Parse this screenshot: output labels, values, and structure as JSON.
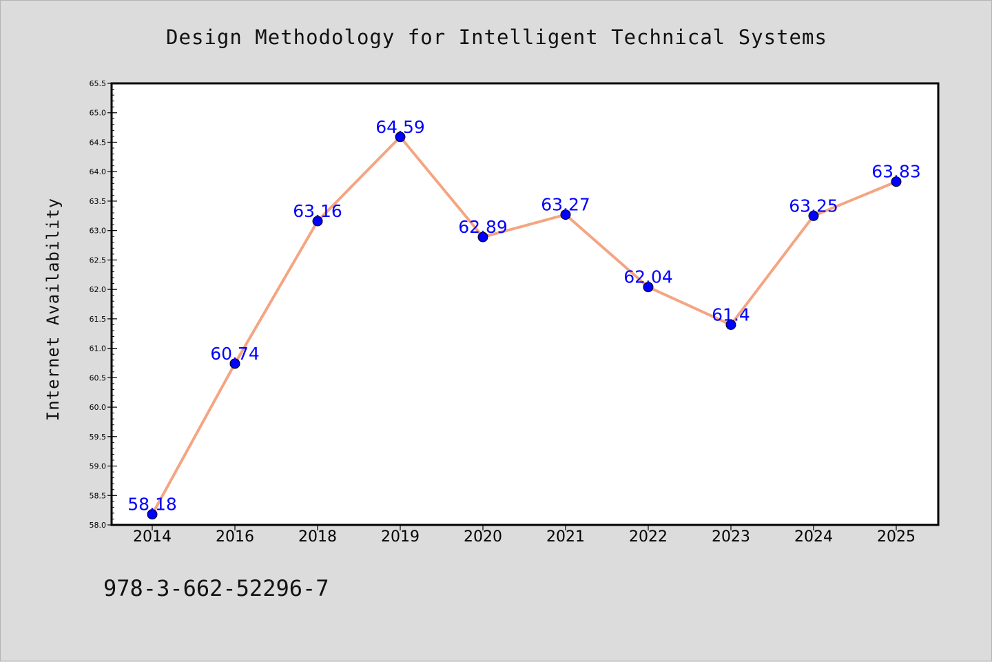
{
  "chart_data": {
    "type": "line",
    "title": "Design Methodology for Intelligent Technical Systems",
    "ylabel": "Internet Availability",
    "xlabel": "",
    "categories": [
      "2014",
      "2016",
      "2018",
      "2019",
      "2020",
      "2021",
      "2022",
      "2023",
      "2024",
      "2025"
    ],
    "series": [
      {
        "values": [
          58.18,
          60.74,
          63.16,
          64.59,
          62.89,
          63.27,
          62.04,
          61.4,
          63.25,
          63.83
        ],
        "data_labels": [
          "58.18",
          "60.74",
          "63.16",
          "64.59",
          "62.89",
          "63.27",
          "62.04",
          "61.4",
          "63.25",
          "63.83"
        ]
      }
    ],
    "ylim": [
      58.0,
      65.5
    ],
    "yticks": [
      "58.0",
      "58.5",
      "59.0",
      "59.5",
      "60.0",
      "60.5",
      "61.0",
      "61.5",
      "62.0",
      "62.5",
      "63.0",
      "63.5",
      "64.0",
      "64.5",
      "65.0",
      "65.5"
    ],
    "grid": false,
    "legend": "none",
    "colors": {
      "line": "#f4a582",
      "marker": "#0000ff",
      "data_label": "#0000ff",
      "background": "#dcdcdc",
      "plot_area": "#ffffff"
    }
  },
  "footer": {
    "code": "978-3-662-52296-7"
  }
}
